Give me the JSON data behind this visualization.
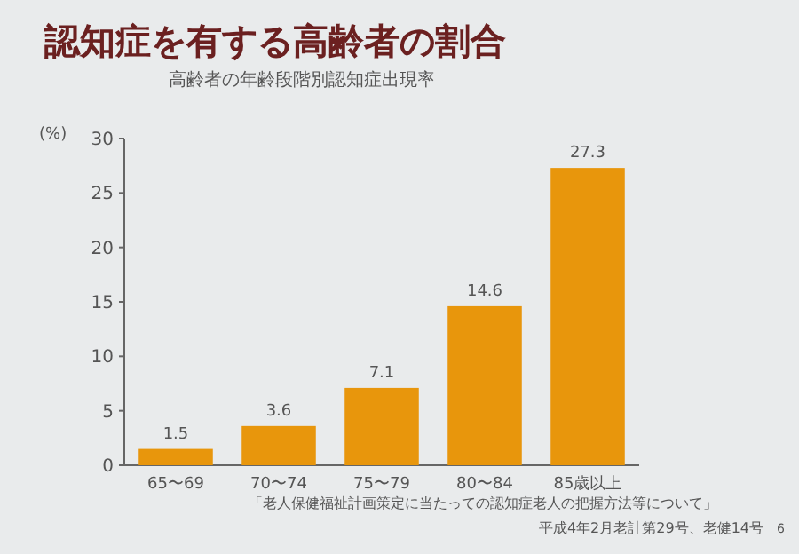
{
  "chart_data": {
    "type": "bar",
    "title": "認知症を有する高齢者の割合",
    "subtitle": "高齢者の年齢段階別認知症出現率",
    "ylabel": "(%)",
    "categories": [
      "65〜69",
      "70〜74",
      "75〜79",
      "80〜84",
      "85歳以上"
    ],
    "values": [
      1.5,
      3.6,
      7.1,
      14.6,
      27.3
    ],
    "color": "#e8960c",
    "ylim": [
      0,
      30
    ],
    "yticks": [
      0,
      5,
      10,
      15,
      20,
      25,
      30
    ],
    "data_labels": true,
    "annotations": [
      "「老人保健福祉計画策定に当たっての認知症老人の把握方法等について」",
      "平成4年2月老計第29号、老健14号",
      "6"
    ]
  }
}
